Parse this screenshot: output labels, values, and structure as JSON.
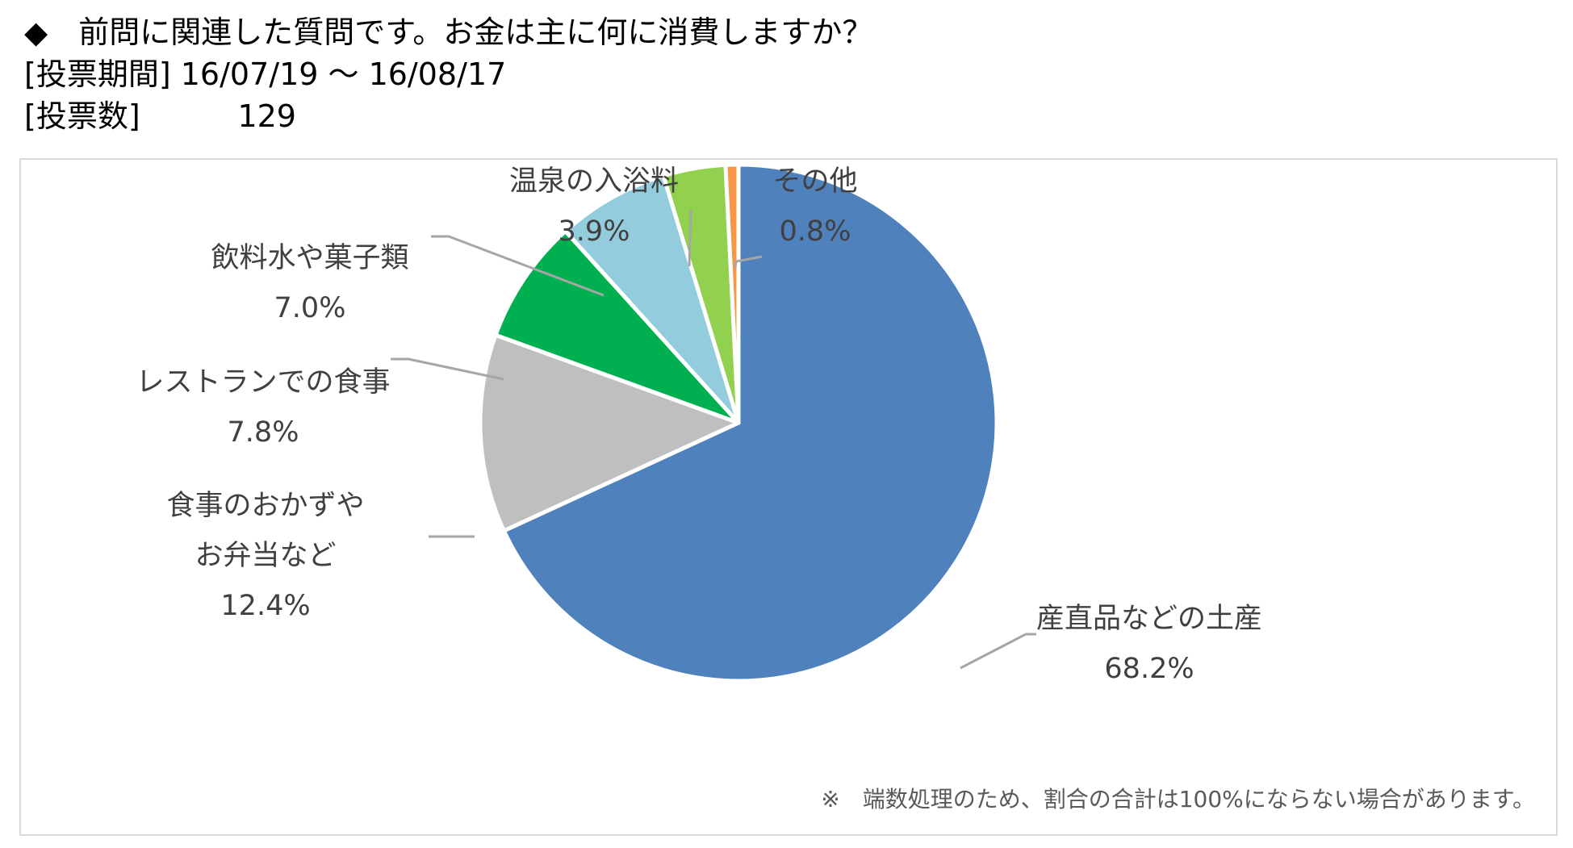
{
  "header": {
    "question": "◆　前問に関連した質問です。お金は主に何に消費しますか？",
    "period_label": "[投票期間]",
    "period_value": "16/07/19 ～ 16/08/17",
    "votes_label": "[投票数]",
    "votes_value": "129"
  },
  "chart_data": {
    "type": "pie",
    "start_angle_deg": 0,
    "direction": "clockwise",
    "slices": [
      {
        "label": "産直品などの土産",
        "value": 68.2,
        "value_label": "68.2%",
        "color": "#4f81bd"
      },
      {
        "label": "食事のおかずやお弁当など",
        "label_lines": [
          "食事のおかずや",
          "お弁当など"
        ],
        "value": 12.4,
        "value_label": "12.4%",
        "color": "#bfbfbf"
      },
      {
        "label": "レストランでの食事",
        "value": 7.8,
        "value_label": "7.8%",
        "color": "#00b050"
      },
      {
        "label": "飲料水や菓子類",
        "value": 7.0,
        "value_label": "7.0%",
        "color": "#93cddd"
      },
      {
        "label": "温泉の入浴料",
        "value": 3.9,
        "value_label": "3.9%",
        "color": "#92d050"
      },
      {
        "label": "その他",
        "value": 0.8,
        "value_label": "0.8%",
        "color": "#f79646"
      }
    ],
    "note": "※　端数処理のため、割合の合計は100%にならない場合があります。"
  }
}
